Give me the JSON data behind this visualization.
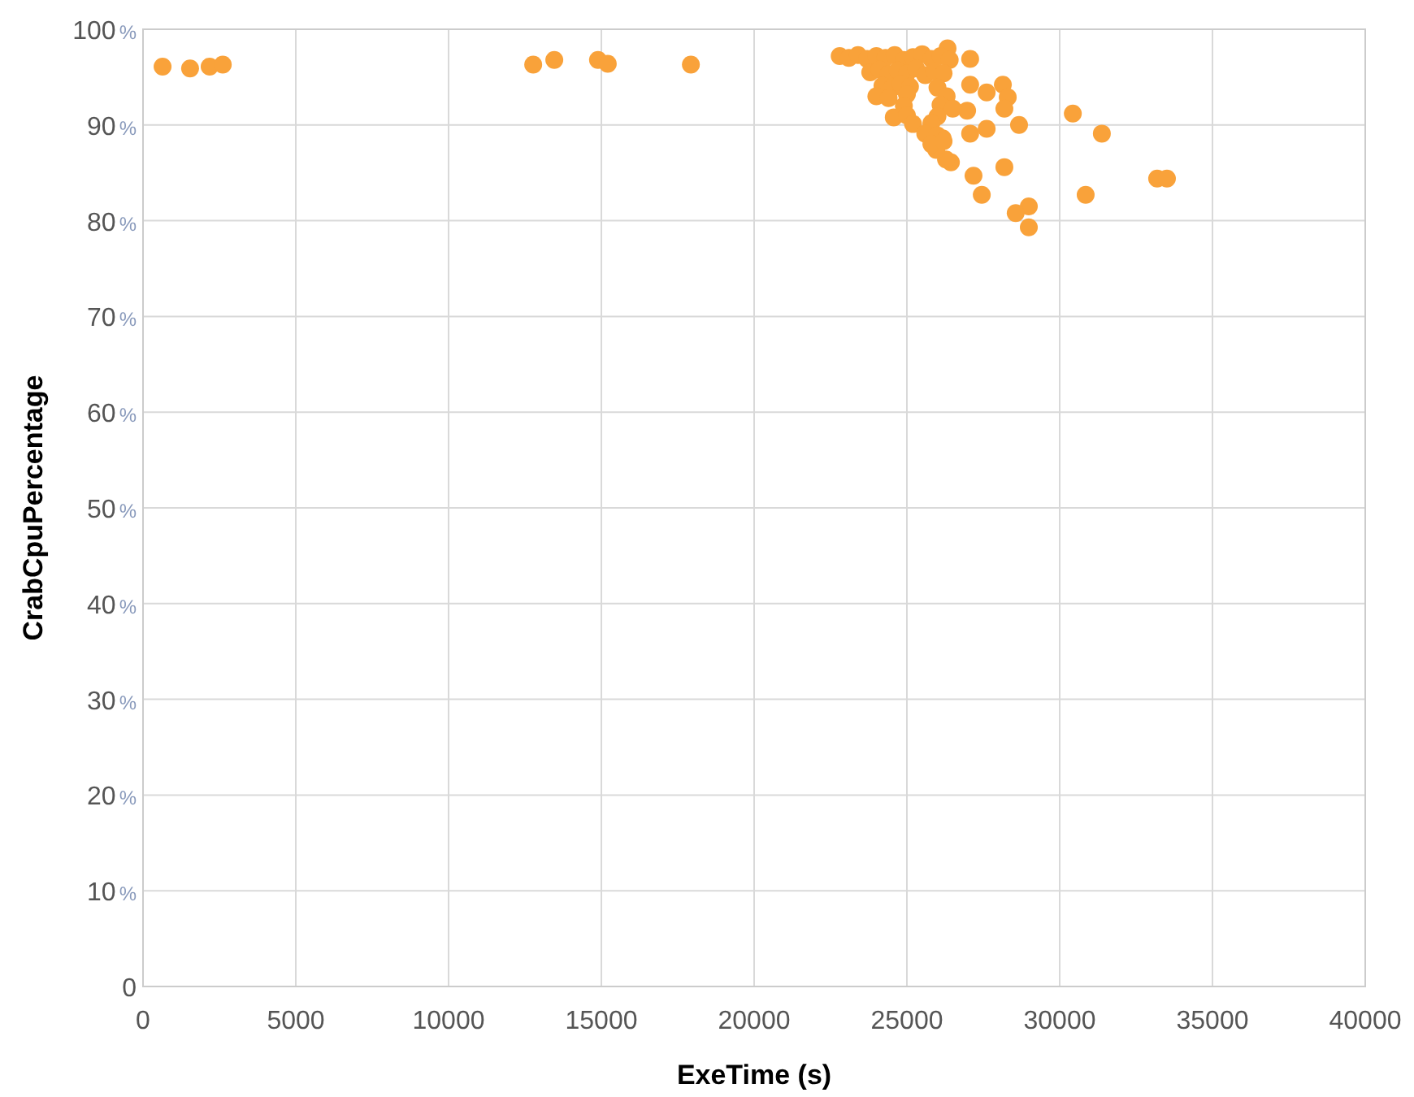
{
  "chart_data": {
    "type": "scatter",
    "xlabel": "ExeTime (s)",
    "ylabel": "CrabCpuPercentage",
    "xlim": [
      0,
      40000
    ],
    "xticks": [
      0,
      5000,
      10000,
      15000,
      20000,
      25000,
      30000,
      35000,
      40000
    ],
    "ylim": [
      0,
      100
    ],
    "yticks": [
      0,
      {
        "value": 10,
        "label": "10%"
      },
      {
        "value": 20,
        "label": "20%"
      },
      {
        "value": 30,
        "label": "30%"
      },
      {
        "value": 40,
        "label": "40%"
      },
      {
        "value": 50,
        "label": "50%"
      },
      {
        "value": 60,
        "label": "60%"
      },
      {
        "value": 70,
        "label": "70%"
      },
      {
        "value": 80,
        "label": "80%"
      },
      {
        "value": 90,
        "label": "90%"
      },
      {
        "value": 100,
        "label": "100%"
      }
    ],
    "grid": true,
    "marker": "circle",
    "series": [
      {
        "color": "#f9a23a",
        "x": [
          640,
          1540,
          2180,
          2610,
          12770,
          13460,
          14890,
          15210,
          17930,
          30430,
          31380,
          33190,
          33510,
          30850,
          28990,
          28560,
          28990,
          28670,
          27070,
          27610,
          28190,
          27180,
          27450,
          26440,
          26280,
          25960,
          26170,
          28140,
          28300,
          28190,
          27610,
          27070,
          26970,
          24570,
          27070,
          26330,
          22800,
          23100,
          23400,
          23700,
          24000,
          24300,
          24600,
          24900,
          25200,
          25500,
          25800,
          26100,
          26400,
          23800,
          24100,
          24400,
          24700,
          25000,
          25300,
          25600,
          25900,
          26200,
          24200,
          24500,
          24800,
          25100,
          26000,
          24000,
          24400,
          25000,
          26300,
          24900,
          26100,
          26500,
          25000,
          26000,
          25200,
          25800,
          25600,
          26000,
          25800,
          26200
        ],
        "values": [
          96.1,
          95.9,
          96.1,
          96.3,
          96.3,
          96.8,
          96.8,
          96.4,
          96.3,
          91.2,
          89.1,
          84.4,
          84.4,
          82.7,
          81.5,
          80.8,
          79.3,
          90.0,
          89.1,
          89.6,
          85.6,
          84.7,
          82.7,
          86.1,
          86.4,
          87.4,
          88.6,
          94.2,
          92.9,
          91.7,
          93.4,
          94.2,
          91.5,
          90.8,
          96.9,
          98.0,
          97.2,
          97.0,
          97.3,
          96.9,
          97.2,
          97.0,
          97.3,
          96.8,
          97.1,
          97.4,
          96.9,
          97.2,
          96.8,
          95.5,
          95.8,
          95.3,
          95.7,
          95.4,
          95.9,
          95.2,
          95.6,
          95.4,
          94.1,
          93.8,
          94.3,
          94.0,
          93.9,
          93.0,
          92.8,
          93.2,
          93.0,
          92.0,
          92.1,
          91.7,
          91.0,
          90.9,
          90.1,
          90.2,
          89.1,
          88.9,
          88.0,
          88.3
        ]
      }
    ]
  }
}
